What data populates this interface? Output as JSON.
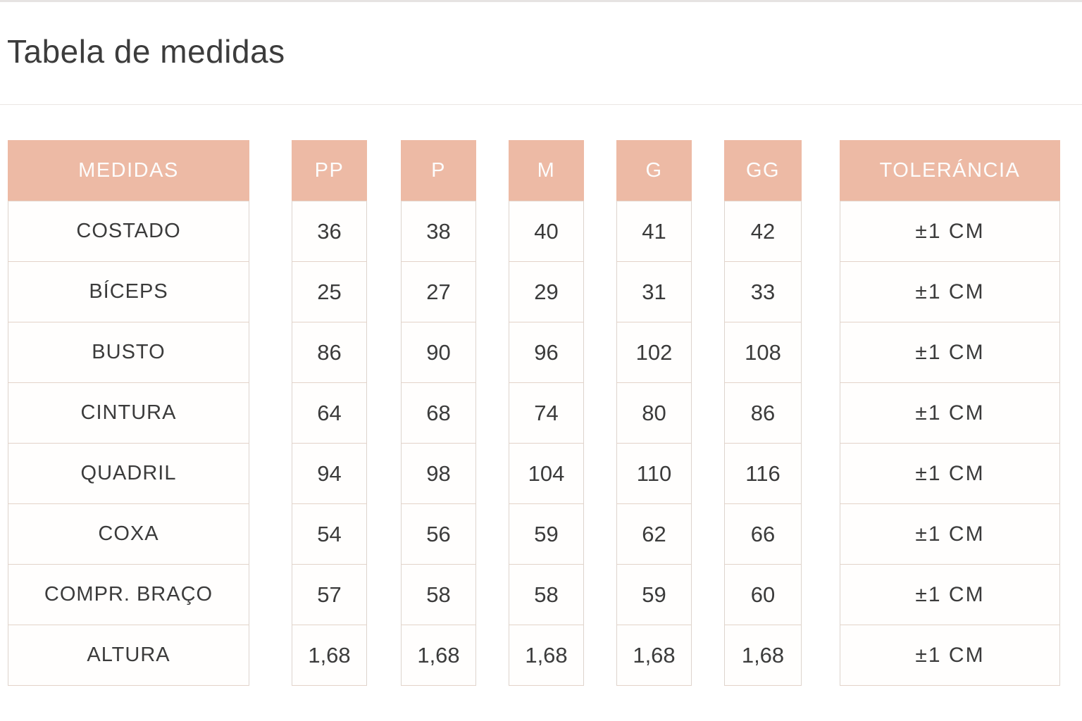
{
  "title": "Tabela de medidas",
  "colors": {
    "header_bg": "#edbaa5",
    "header_text": "#fdfdfd",
    "cell_border": "#e3d3c9",
    "body_text": "#3b3b3b"
  },
  "table": {
    "measure_header": "MEDIDAS",
    "size_headers": [
      "PP",
      "P",
      "M",
      "G",
      "GG"
    ],
    "tolerance_header": "TOLERÁNCIA",
    "rows": [
      {
        "label": "COSTADO",
        "values": [
          "36",
          "38",
          "40",
          "41",
          "42"
        ],
        "tolerance": "±1 CM"
      },
      {
        "label": "BÍCEPS",
        "values": [
          "25",
          "27",
          "29",
          "31",
          "33"
        ],
        "tolerance": "±1 CM"
      },
      {
        "label": "BUSTO",
        "values": [
          "86",
          "90",
          "96",
          "102",
          "108"
        ],
        "tolerance": "±1 CM"
      },
      {
        "label": "CINTURA",
        "values": [
          "64",
          "68",
          "74",
          "80",
          "86"
        ],
        "tolerance": "±1 CM"
      },
      {
        "label": "QUADRIL",
        "values": [
          "94",
          "98",
          "104",
          "110",
          "116"
        ],
        "tolerance": "±1 CM"
      },
      {
        "label": "COXA",
        "values": [
          "54",
          "56",
          "59",
          "62",
          "66"
        ],
        "tolerance": "±1 CM"
      },
      {
        "label": "COMPR. BRAÇO",
        "values": [
          "57",
          "58",
          "58",
          "59",
          "60"
        ],
        "tolerance": "±1 CM"
      },
      {
        "label": "ALTURA",
        "values": [
          "1,68",
          "1,68",
          "1,68",
          "1,68",
          "1,68"
        ],
        "tolerance": "±1 CM"
      }
    ]
  }
}
